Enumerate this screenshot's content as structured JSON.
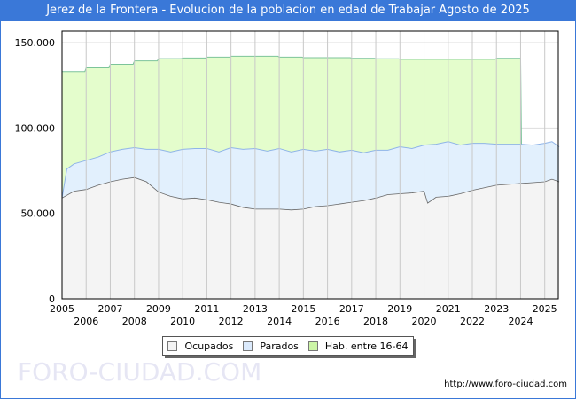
{
  "title": "Jerez de la Frontera - Evolucion de la poblacion en edad de Trabajar Agosto de 2025",
  "footer_url": "http://www.foro-ciudad.com",
  "watermark": "FORO-CIUDAD.COM",
  "colors": {
    "ocupados_fill": "#f4f4f4",
    "ocupados_line": "#666666",
    "parados_fill": "#e2f0fd",
    "parados_line": "#8fb4e8",
    "hab_fill": "#e4fdcc",
    "hab_line": "#7cc49a",
    "title_bg": "#3a78d8"
  },
  "chart_data": {
    "type": "area",
    "title": "Jerez de la Frontera - Evolucion de la poblacion en edad de Trabajar Agosto de 2025",
    "xlabel": "",
    "ylabel": "",
    "xlim": [
      2005,
      2025.6
    ],
    "ylim": [
      0,
      150000
    ],
    "yticks": [
      0,
      50000,
      100000,
      150000
    ],
    "ytick_labels": [
      "0",
      "50.000",
      "100.000",
      "150.000"
    ],
    "xtick_labels": [
      "2005",
      "2006",
      "2007",
      "2008",
      "2009",
      "2010",
      "2011",
      "2012",
      "2013",
      "2014",
      "2015",
      "2016",
      "2017",
      "2018",
      "2019",
      "2020",
      "2021",
      "2022",
      "2023",
      "2024",
      "2025"
    ],
    "grid": true,
    "legend_position": "bottom-center",
    "legend": [
      "Ocupados",
      "Parados",
      "Hab. entre 16-64"
    ],
    "series": [
      {
        "name": "Hab. entre 16-64",
        "stepped": true,
        "x": [
          2005,
          2006,
          2007,
          2008,
          2009,
          2010,
          2011,
          2012,
          2013,
          2014,
          2015,
          2016,
          2017,
          2018,
          2019,
          2020,
          2021,
          2022,
          2023,
          2024
        ],
        "values": [
          133000,
          135200,
          137300,
          139300,
          140600,
          141000,
          141500,
          142000,
          142000,
          141500,
          141200,
          141200,
          140800,
          140500,
          140200,
          140200,
          140200,
          140200,
          140800,
          140800
        ]
      },
      {
        "name": "Parados",
        "note": "stacked top (Ocupados + Parados)",
        "x": [
          2005,
          2005.2,
          2005.5,
          2006,
          2006.5,
          2007,
          2007.5,
          2008,
          2008.5,
          2009,
          2009.5,
          2010,
          2010.5,
          2011,
          2011.5,
          2012,
          2012.5,
          2013,
          2013.5,
          2014,
          2014.5,
          2015,
          2015.5,
          2016,
          2016.5,
          2017,
          2017.5,
          2018,
          2018.5,
          2019,
          2019.5,
          2020,
          2020.5,
          2021,
          2021.5,
          2022,
          2022.5,
          2023,
          2023.5,
          2024,
          2024.5,
          2025,
          2025.3,
          2025.6
        ],
        "values": [
          59000,
          76000,
          79000,
          81000,
          83000,
          86000,
          87500,
          88500,
          87500,
          87500,
          86000,
          87500,
          88000,
          88000,
          86000,
          88500,
          87500,
          88000,
          86500,
          88000,
          86000,
          87500,
          86500,
          87500,
          86000,
          87000,
          85500,
          87000,
          87000,
          89000,
          88000,
          90000,
          90500,
          92000,
          90000,
          91000,
          91000,
          90500,
          90500,
          90500,
          90000,
          91000,
          92000,
          89000
        ]
      },
      {
        "name": "Ocupados",
        "x": [
          2005,
          2005.5,
          2006,
          2006.5,
          2007,
          2007.5,
          2008,
          2008.5,
          2009,
          2009.5,
          2010,
          2010.5,
          2011,
          2011.5,
          2012,
          2012.5,
          2013,
          2013.5,
          2014,
          2014.5,
          2015,
          2015.5,
          2016,
          2016.5,
          2017,
          2017.5,
          2018,
          2018.5,
          2019,
          2019.5,
          2020,
          2020.15,
          2020.5,
          2021,
          2021.5,
          2022,
          2022.5,
          2023,
          2023.5,
          2024,
          2024.5,
          2025,
          2025.3,
          2025.6
        ],
        "values": [
          59000,
          63000,
          64000,
          66500,
          68500,
          70000,
          71000,
          68500,
          62500,
          60000,
          58500,
          59000,
          58000,
          56500,
          55500,
          53500,
          52500,
          52500,
          52500,
          52000,
          52500,
          54000,
          54500,
          55500,
          56500,
          57500,
          59000,
          61000,
          61500,
          62000,
          63000,
          56000,
          59500,
          60000,
          61500,
          63500,
          65000,
          66500,
          67000,
          67500,
          68000,
          68500,
          70000,
          68500
        ]
      }
    ]
  }
}
